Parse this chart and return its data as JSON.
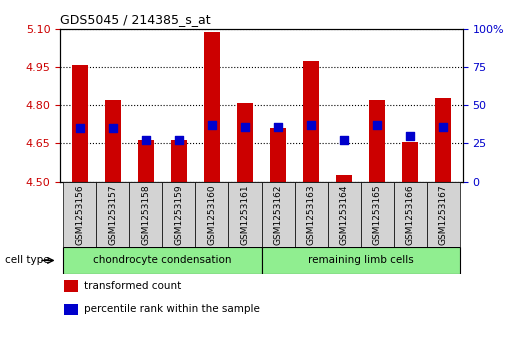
{
  "title": "GDS5045 / 214385_s_at",
  "samples": [
    "GSM1253156",
    "GSM1253157",
    "GSM1253158",
    "GSM1253159",
    "GSM1253160",
    "GSM1253161",
    "GSM1253162",
    "GSM1253163",
    "GSM1253164",
    "GSM1253165",
    "GSM1253166",
    "GSM1253167"
  ],
  "transformed_count": [
    4.96,
    4.82,
    4.665,
    4.665,
    5.09,
    4.81,
    4.71,
    4.975,
    4.525,
    4.82,
    4.655,
    4.83
  ],
  "percentile_rank": [
    35,
    35,
    27,
    27,
    37,
    36,
    36,
    37,
    27,
    37,
    30,
    36
  ],
  "ylim_left": [
    4.5,
    5.1
  ],
  "ylim_right": [
    0,
    100
  ],
  "yticks_left": [
    4.5,
    4.65,
    4.8,
    4.95,
    5.1
  ],
  "yticks_right": [
    0,
    25,
    50,
    75,
    100
  ],
  "bar_color": "#cc0000",
  "dot_color": "#0000cc",
  "base_value": 4.5,
  "group_labels": [
    "chondrocyte condensation",
    "remaining limb cells"
  ],
  "group_starts": [
    0,
    6
  ],
  "group_ends": [
    5,
    11
  ],
  "group_color": "#90ee90",
  "group_header": "cell type",
  "legend_items": [
    {
      "color": "#cc0000",
      "label": "transformed count"
    },
    {
      "color": "#0000cc",
      "label": "percentile rank within the sample"
    }
  ],
  "tick_label_color_left": "#cc0000",
  "tick_label_color_right": "#0000cc",
  "bar_width": 0.5,
  "dot_size": 40,
  "background_color": "#ffffff",
  "sample_box_color": "#d3d3d3"
}
